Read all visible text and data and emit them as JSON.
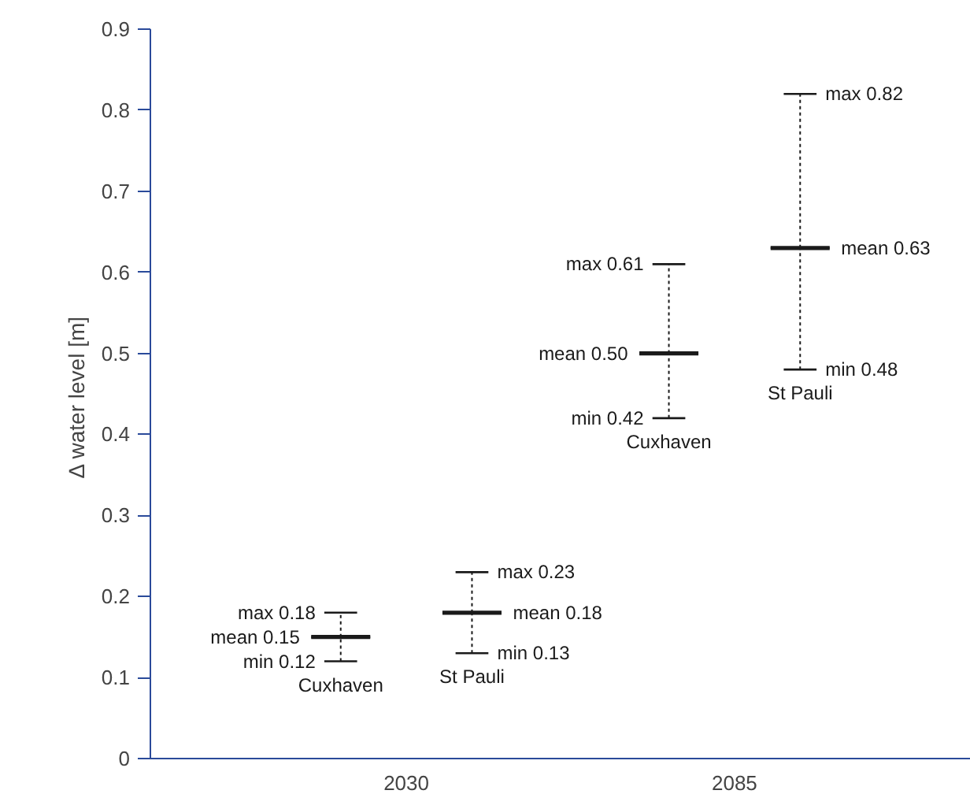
{
  "chart_data": {
    "type": "box",
    "ylabel": "Δ water level  [m]",
    "categories": [
      "2030",
      "2085"
    ],
    "series": [
      {
        "name": "Cuxhaven",
        "color": "#1a1a1a",
        "boxes": [
          {
            "low": 0.12,
            "q1": 0.15,
            "median": 0.15,
            "q3": 0.15,
            "high": 0.18
          },
          {
            "low": 0.42,
            "q1": 0.5,
            "median": 0.5,
            "q3": 0.5,
            "high": 0.61
          }
        ]
      },
      {
        "name": "St Pauli",
        "color": "#1a1a1a",
        "boxes": [
          {
            "low": 0.13,
            "q1": 0.18,
            "median": 0.18,
            "q3": 0.18,
            "high": 0.23
          },
          {
            "low": 0.48,
            "q1": 0.63,
            "median": 0.63,
            "q3": 0.63,
            "high": 0.82
          }
        ]
      }
    ],
    "line_style": "dotted",
    "ylim": [
      0,
      0.9
    ],
    "yticks": [
      0,
      0.1,
      0.2,
      0.3,
      0.4,
      0.5,
      0.6,
      0.7,
      0.8,
      0.9
    ],
    "annotations": [
      "max 0.18",
      "mean 0.15",
      "min 0.12",
      "max 0.23",
      "mean 0.18",
      "min 0.13",
      "max 0.61",
      "mean 0.50",
      "min 0.42",
      "max 0.82",
      "mean 0.63",
      "min 0.48"
    ]
  }
}
